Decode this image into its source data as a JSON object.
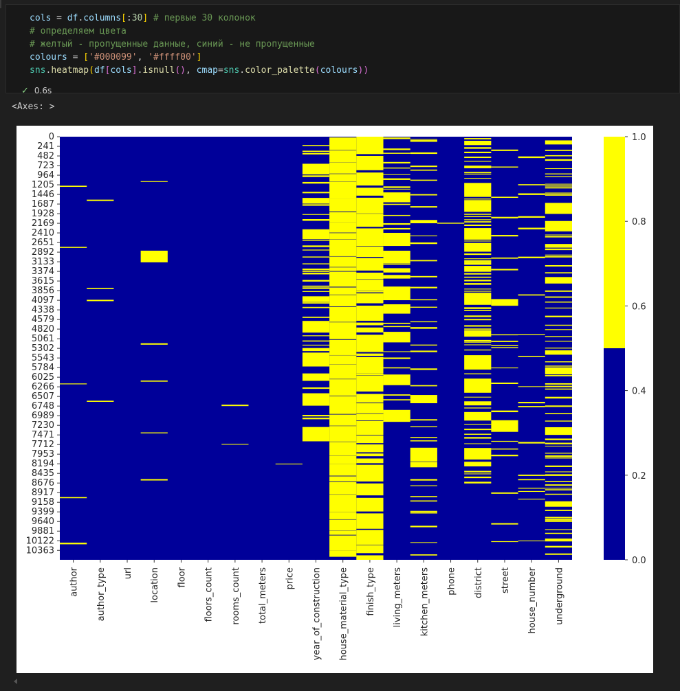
{
  "code_cell": {
    "lines": [
      {
        "parts": [
          [
            "var",
            "cols"
          ],
          [
            "op",
            " = "
          ],
          [
            "var",
            "df"
          ],
          [
            "op",
            "."
          ],
          [
            "var",
            "columns"
          ],
          [
            "br",
            "["
          ],
          [
            "op",
            ":"
          ],
          [
            "num",
            "30"
          ],
          [
            "br",
            "]"
          ],
          [
            "com",
            " # первые 30 колонок"
          ]
        ]
      },
      {
        "parts": [
          [
            "com",
            "# определяем цвета"
          ]
        ]
      },
      {
        "parts": [
          [
            "com",
            "# желтый - пропущенные данные, синий - не пропущенные"
          ]
        ]
      },
      {
        "parts": [
          [
            "var",
            "colours"
          ],
          [
            "op",
            " = "
          ],
          [
            "br",
            "["
          ],
          [
            "str",
            "'#000099'"
          ],
          [
            "op",
            ", "
          ],
          [
            "str",
            "'#ffff00'"
          ],
          [
            "br",
            "]"
          ]
        ]
      },
      {
        "parts": [
          [
            "mod",
            "sns"
          ],
          [
            "op",
            "."
          ],
          [
            "fn",
            "heatmap"
          ],
          [
            "br",
            "("
          ],
          [
            "var",
            "df"
          ],
          [
            "br2",
            "["
          ],
          [
            "var",
            "cols"
          ],
          [
            "br2",
            "]"
          ],
          [
            "op",
            "."
          ],
          [
            "fn",
            "isnull"
          ],
          [
            "br2",
            "()"
          ],
          [
            "op",
            ", "
          ],
          [
            "var",
            "cmap"
          ],
          [
            "op",
            "="
          ],
          [
            "mod",
            "sns"
          ],
          [
            "op",
            "."
          ],
          [
            "fn",
            "color_palette"
          ],
          [
            "br2",
            "("
          ],
          [
            "var",
            "colours"
          ],
          [
            "br2",
            "))"
          ]
        ]
      }
    ],
    "exec_time": "0.6s"
  },
  "output_text": "<Axes: >",
  "chart_data": {
    "type": "heatmap",
    "colors": {
      "not_null": "#000099",
      "null": "#ffff00"
    },
    "columns": [
      "author",
      "author_type",
      "url",
      "location",
      "floor",
      "floors_count",
      "rooms_count",
      "total_meters",
      "price",
      "year_of_construction",
      "house_material_type",
      "finish_type",
      "living_meters",
      "kitchen_meters",
      "phone",
      "district",
      "street",
      "house_number",
      "underground"
    ],
    "row_ticks": [
      "0",
      "241",
      "482",
      "723",
      "964",
      "1205",
      "1446",
      "1687",
      "1928",
      "2169",
      "2410",
      "2651",
      "2892",
      "3133",
      "3374",
      "3615",
      "3856",
      "4097",
      "4338",
      "4579",
      "4820",
      "5061",
      "5302",
      "5543",
      "5784",
      "6025",
      "6266",
      "6507",
      "6748",
      "6989",
      "7230",
      "7471",
      "7712",
      "7953",
      "8194",
      "8435",
      "8676",
      "8917",
      "9158",
      "9399",
      "9640",
      "9881",
      "10122",
      "10363"
    ],
    "n_rows": 10600,
    "colorbar": {
      "ticks": [
        "0.0",
        "0.2",
        "0.4",
        "0.6",
        "0.8",
        "1.0"
      ],
      "range": [
        0,
        1
      ]
    },
    "missing_fraction": [
      0.02,
      0.02,
      0,
      0.04,
      0,
      0,
      0.01,
      0,
      0.002,
      0.3,
      0.96,
      0.88,
      0.28,
      0.2,
      0.002,
      0.45,
      0.1,
      0.08,
      0.35
    ]
  }
}
